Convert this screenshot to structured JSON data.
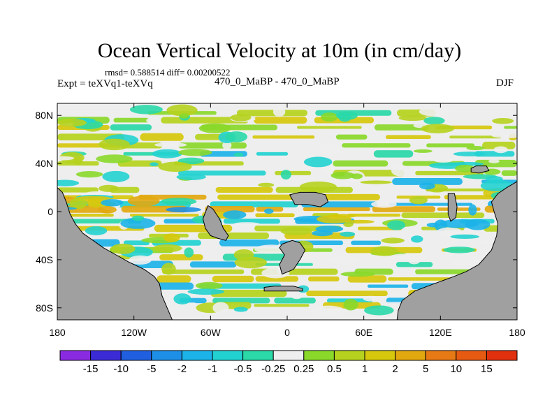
{
  "chart_data": {
    "type": "heatmap",
    "title": "Ocean Vertical Velocity at 10m (in cm/day)",
    "stats": "rmsd= 0.588514 diff= 0.00200522",
    "left_label": "Expt = teXVq1-teXVq",
    "center_label": "470_0_MaBP - 470_0_MaBP",
    "right_label": "DJF",
    "x_axis": {
      "range": [
        -180,
        180
      ],
      "ticks": [
        {
          "value": -180,
          "label": "180"
        },
        {
          "value": -120,
          "label": "120W"
        },
        {
          "value": -60,
          "label": "60W"
        },
        {
          "value": 0,
          "label": "0"
        },
        {
          "value": 60,
          "label": "60E"
        },
        {
          "value": 120,
          "label": "120E"
        },
        {
          "value": 180,
          "label": "180"
        }
      ]
    },
    "y_axis": {
      "range": [
        -90,
        90
      ],
      "ticks": [
        {
          "value": 80,
          "label": "80N"
        },
        {
          "value": 40,
          "label": "40N"
        },
        {
          "value": 0,
          "label": "0"
        },
        {
          "value": -40,
          "label": "40S"
        },
        {
          "value": -80,
          "label": "80S"
        }
      ]
    },
    "colorbar": {
      "labels": [
        "-15",
        "-10",
        "-5",
        "-2",
        "-1",
        "-0.5",
        "-0.25",
        "0.25",
        "0.5",
        "1",
        "2",
        "5",
        "10",
        "15"
      ],
      "colors": [
        "#8a2be2",
        "#3a2bd6",
        "#1f5fe0",
        "#1e8fe6",
        "#1cb3e8",
        "#22d2d0",
        "#2ad8a8",
        "#eeeeee",
        "#8ad82a",
        "#b6d21e",
        "#d6c80c",
        "#e2a810",
        "#e77a14",
        "#e65a12",
        "#e0300e"
      ]
    },
    "land_color": "#a0a0a0",
    "ocean_bands": [
      {
        "lat": 82,
        "value": 0.1
      },
      {
        "lat": 76,
        "value": 0.6
      },
      {
        "lat": 70,
        "value": 0.3
      },
      {
        "lat": 62,
        "value": 0.7
      },
      {
        "lat": 55,
        "value": 0.5
      },
      {
        "lat": 48,
        "value": -0.4
      },
      {
        "lat": 40,
        "value": 0.6
      },
      {
        "lat": 32,
        "value": 0.2
      },
      {
        "lat": 25,
        "value": -0.6
      },
      {
        "lat": 18,
        "value": 0.8
      },
      {
        "lat": 12,
        "value": 1.5
      },
      {
        "lat": 6,
        "value": -1.2
      },
      {
        "lat": 2,
        "value": 3.0
      },
      {
        "lat": -3,
        "value": 1.2
      },
      {
        "lat": -8,
        "value": -0.8
      },
      {
        "lat": -14,
        "value": 1.6
      },
      {
        "lat": -20,
        "value": 0.7
      },
      {
        "lat": -26,
        "value": -0.5
      },
      {
        "lat": -32,
        "value": 0.9
      },
      {
        "lat": -38,
        "value": 0.4
      },
      {
        "lat": -44,
        "value": -0.7
      },
      {
        "lat": -50,
        "value": 0.6
      },
      {
        "lat": -56,
        "value": 1.1
      },
      {
        "lat": -62,
        "value": -0.9
      },
      {
        "lat": -68,
        "value": 0.8
      },
      {
        "lat": -74,
        "value": -0.6
      },
      {
        "lat": -78,
        "value": 0.5
      }
    ],
    "land_masses": [
      {
        "name": "west-continent",
        "polygon": [
          [
            -180,
            20
          ],
          [
            -176,
            16
          ],
          [
            -173,
            8
          ],
          [
            -170,
            -2
          ],
          [
            -166,
            -10
          ],
          [
            -160,
            -18
          ],
          [
            -152,
            -24
          ],
          [
            -144,
            -30
          ],
          [
            -134,
            -36
          ],
          [
            -124,
            -42
          ],
          [
            -112,
            -48
          ],
          [
            -104,
            -54
          ],
          [
            -100,
            -60
          ],
          [
            -98,
            -70
          ],
          [
            -94,
            -80
          ],
          [
            -90,
            -90
          ],
          [
            -180,
            -90
          ]
        ]
      },
      {
        "name": "east-continent",
        "polygon": [
          [
            180,
            25
          ],
          [
            172,
            20
          ],
          [
            165,
            15
          ],
          [
            160,
            8
          ],
          [
            162,
            0
          ],
          [
            165,
            -10
          ],
          [
            164,
            -20
          ],
          [
            160,
            -32
          ],
          [
            150,
            -44
          ],
          [
            140,
            -50
          ],
          [
            128,
            -55
          ],
          [
            115,
            -60
          ],
          [
            100,
            -66
          ],
          [
            90,
            -74
          ],
          [
            87,
            -82
          ],
          [
            86,
            -90
          ],
          [
            180,
            -90
          ]
        ]
      },
      {
        "name": "atlantic-island",
        "polygon": [
          [
            -62,
            5
          ],
          [
            -58,
            2
          ],
          [
            -53,
            -6
          ],
          [
            -50,
            -14
          ],
          [
            -46,
            -20
          ],
          [
            -48,
            -24
          ],
          [
            -55,
            -22
          ],
          [
            -60,
            -20
          ],
          [
            -64,
            -14
          ],
          [
            -66,
            -6
          ]
        ]
      },
      {
        "name": "southern-island",
        "polygon": [
          [
            -4,
            -27
          ],
          [
            4,
            -24
          ],
          [
            10,
            -26
          ],
          [
            14,
            -32
          ],
          [
            10,
            -40
          ],
          [
            5,
            -48
          ],
          [
            -4,
            -52
          ],
          [
            -6,
            -44
          ],
          [
            -2,
            -36
          ],
          [
            -6,
            -30
          ]
        ]
      },
      {
        "name": "northern-island",
        "polygon": [
          [
            2,
            14
          ],
          [
            10,
            16
          ],
          [
            22,
            16
          ],
          [
            30,
            14
          ],
          [
            32,
            8
          ],
          [
            26,
            4
          ],
          [
            16,
            6
          ],
          [
            6,
            6
          ]
        ]
      },
      {
        "name": "small-island",
        "polygon": [
          [
            126,
            15
          ],
          [
            131,
            15
          ],
          [
            133,
            4
          ],
          [
            132,
            -5
          ],
          [
            128,
            -8
          ],
          [
            126,
            -2
          ]
        ]
      },
      {
        "name": "nw-islet",
        "polygon": [
          [
            144,
            36
          ],
          [
            148,
            38
          ],
          [
            156,
            38
          ],
          [
            158,
            34
          ],
          [
            150,
            32
          ],
          [
            144,
            33
          ]
        ]
      },
      {
        "name": "south-strip",
        "polygon": [
          [
            -18,
            -63
          ],
          [
            -10,
            -62
          ],
          [
            5,
            -62
          ],
          [
            12,
            -64
          ],
          [
            12,
            -66
          ],
          [
            -18,
            -66
          ]
        ]
      }
    ]
  }
}
